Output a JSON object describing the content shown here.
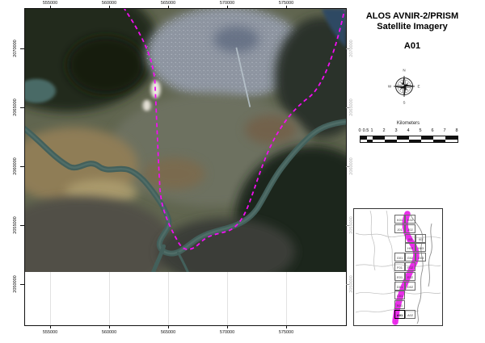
{
  "title": {
    "line1": "ALOS AVNIR-2/PRISM",
    "line2": "Satellite Imagery",
    "sheet": "A01"
  },
  "compass": {
    "n": "N",
    "e": "E",
    "s": "S",
    "w": "W"
  },
  "scalebar": {
    "unit_label": "Kilometers",
    "tick_labels": [
      "0",
      "0.5",
      "1",
      "2",
      "3",
      "4",
      "5",
      "6",
      "7",
      "8"
    ],
    "tick_km": [
      0,
      0.5,
      1,
      2,
      3,
      4,
      5,
      6,
      7,
      8
    ]
  },
  "main_map": {
    "top_tick_labels": [
      "555000",
      "560000",
      "565000",
      "570000",
      "575000"
    ],
    "bottom_tick_labels": [
      "555000",
      "560000",
      "565000",
      "570000",
      "575000"
    ],
    "left_tick_labels": [
      "2070000",
      "2065000",
      "2060000",
      "2055000",
      "2050000"
    ],
    "right_tick_labels": [
      "2070000",
      "2065000",
      "2060000",
      "2055000",
      "2050000"
    ]
  },
  "inset": {
    "highlighted_tile": "A01",
    "tiles": [
      {
        "label": "K01",
        "col": 0,
        "row": 0
      },
      {
        "label": "K02",
        "col": 1,
        "row": 0
      },
      {
        "label": "J01",
        "col": 0,
        "row": 1
      },
      {
        "label": "J02",
        "col": 1,
        "row": 1
      },
      {
        "label": "I02",
        "col": 1,
        "row": 2
      },
      {
        "label": "I03",
        "col": 2,
        "row": 2
      },
      {
        "label": "H02",
        "col": 1,
        "row": 3
      },
      {
        "label": "H03",
        "col": 2,
        "row": 3
      },
      {
        "label": "G01",
        "col": 0,
        "row": 4
      },
      {
        "label": "G02",
        "col": 1,
        "row": 4
      },
      {
        "label": "G03",
        "col": 2,
        "row": 4
      },
      {
        "label": "F01",
        "col": 0,
        "row": 5
      },
      {
        "label": "F02",
        "col": 1,
        "row": 5
      },
      {
        "label": "E01",
        "col": 0,
        "row": 6
      },
      {
        "label": "E02",
        "col": 1,
        "row": 6
      },
      {
        "label": "D01",
        "col": 0,
        "row": 7
      },
      {
        "label": "D02",
        "col": 1,
        "row": 7
      },
      {
        "label": "C01",
        "col": 0,
        "row": 8
      },
      {
        "label": "B01",
        "col": 0,
        "row": 9
      },
      {
        "label": "A01",
        "col": 0,
        "row": 10
      },
      {
        "label": "A02",
        "col": 1,
        "row": 10
      }
    ]
  },
  "colors": {
    "swath_magenta": "#ee00ee",
    "frame": "#111111",
    "river": "#43605b"
  }
}
